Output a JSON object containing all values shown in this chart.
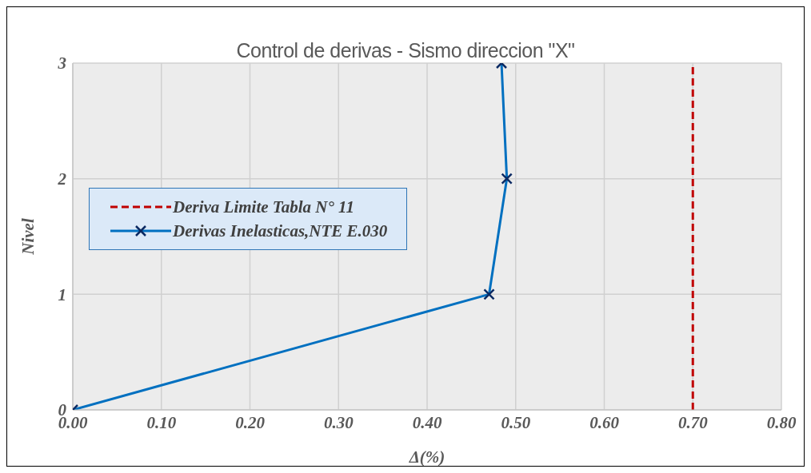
{
  "chart_data": {
    "type": "line",
    "title": "Control de derivas - Sismo  direccion  \"X\"",
    "xlabel": "Δ(%)",
    "ylabel": "Nivel",
    "xlim": [
      0,
      0.8
    ],
    "xticks": [
      {
        "value": 0,
        "label": "0.00"
      },
      {
        "value": 0.1,
        "label": "0.10"
      },
      {
        "value": 0.2,
        "label": "0.20"
      },
      {
        "value": 0.3,
        "label": "0.30"
      },
      {
        "value": 0.4,
        "label": "0.40"
      },
      {
        "value": 0.5,
        "label": "0.50"
      },
      {
        "value": 0.6,
        "label": "0.60"
      },
      {
        "value": 0.7,
        "label": "0.70"
      },
      {
        "value": 0.8,
        "label": "0.80"
      }
    ],
    "ylim": [
      0,
      3
    ],
    "yticks": [
      0,
      1,
      2,
      3
    ],
    "grid": true,
    "legend": "left",
    "series": [
      {
        "name": "Deriva Limite Tabla N° 11",
        "color": "#c00000",
        "x": [
          0.7,
          0.7
        ],
        "values": [
          0,
          3
        ],
        "line_style": "dashed",
        "marker": "none"
      },
      {
        "name": "Derivas Inelasticas,NTE E.030",
        "color": "#0070c0",
        "x": [
          0,
          0.47,
          0.49,
          0.484
        ],
        "values": [
          0,
          1,
          2,
          3
        ],
        "line_style": "solid",
        "marker": "cross"
      }
    ]
  }
}
